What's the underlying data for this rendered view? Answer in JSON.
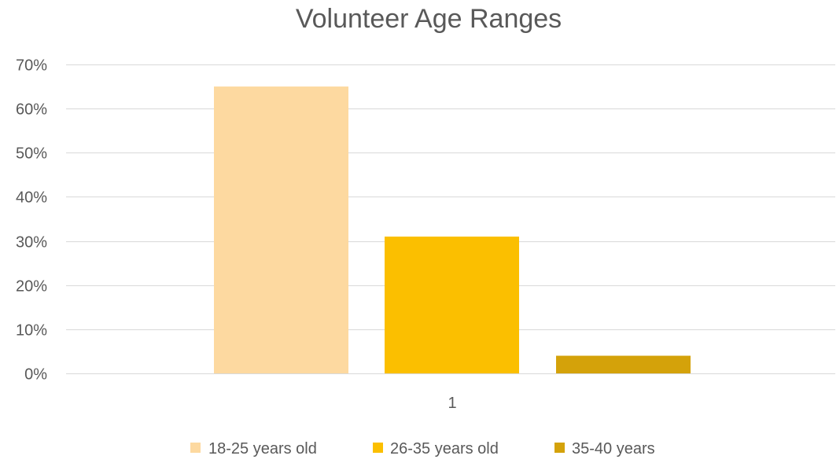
{
  "chart_data": {
    "type": "bar",
    "title": "Volunteer Age Ranges",
    "xlabel": "",
    "ylabel": "",
    "categories": [
      "1"
    ],
    "series": [
      {
        "name": "18-25 years old",
        "values": [
          65
        ],
        "color": "#fdd9a0"
      },
      {
        "name": "26-35 years old",
        "values": [
          31
        ],
        "color": "#fbbf00"
      },
      {
        "name": "35-40 years",
        "values": [
          4
        ],
        "color": "#d4a20a"
      }
    ],
    "ylim": [
      0,
      70
    ],
    "yticks": [
      0,
      10,
      20,
      30,
      40,
      50,
      60,
      70
    ],
    "ytick_labels": [
      "0%",
      "10%",
      "20%",
      "30%",
      "40%",
      "50%",
      "60%",
      "70%"
    ],
    "grid": true,
    "legend_position": "bottom"
  }
}
